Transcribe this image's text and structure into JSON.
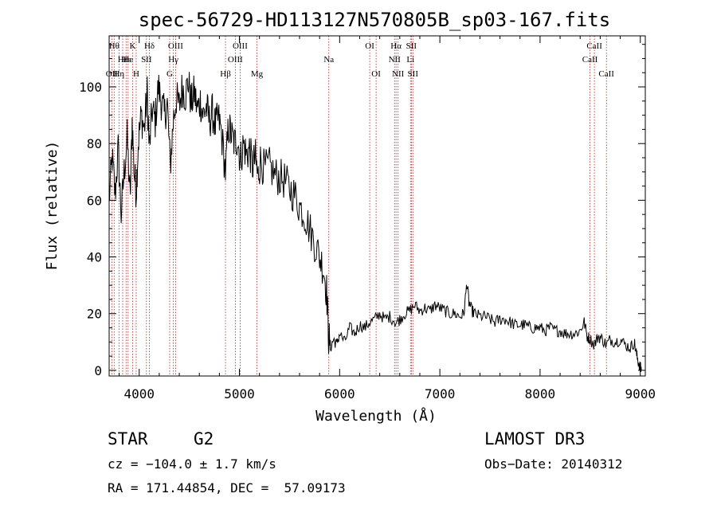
{
  "chart_data": {
    "type": "line",
    "title": "spec-56729-HD113127N570805B_sp03-167.fits",
    "xlabel": "Wavelength (Å)",
    "ylabel": "Flux (relative)",
    "xlim": [
      3700,
      9050
    ],
    "ylim": [
      -2,
      118
    ],
    "xticks": [
      4000,
      5000,
      6000,
      7000,
      8000,
      9000
    ],
    "yticks": [
      0,
      20,
      40,
      60,
      80,
      100
    ],
    "line_color": "#000000",
    "marker_color": "#b22222",
    "spectrum": [
      [
        3700,
        60
      ],
      [
        3730,
        75
      ],
      [
        3760,
        62
      ],
      [
        3790,
        78
      ],
      [
        3820,
        55
      ],
      [
        3850,
        70
      ],
      [
        3880,
        82
      ],
      [
        3910,
        60
      ],
      [
        3930,
        88
      ],
      [
        3950,
        70
      ],
      [
        3970,
        63
      ],
      [
        3990,
        80
      ],
      [
        4020,
        90
      ],
      [
        4050,
        85
      ],
      [
        4080,
        98
      ],
      [
        4100,
        78
      ],
      [
        4130,
        92
      ],
      [
        4160,
        88
      ],
      [
        4190,
        100
      ],
      [
        4220,
        95
      ],
      [
        4250,
        90
      ],
      [
        4280,
        94
      ],
      [
        4310,
        72
      ],
      [
        4340,
        88
      ],
      [
        4370,
        96
      ],
      [
        4400,
        93
      ],
      [
        4430,
        100
      ],
      [
        4460,
        97
      ],
      [
        4490,
        102
      ],
      [
        4520,
        94
      ],
      [
        4550,
        98
      ],
      [
        4580,
        92
      ],
      [
        4610,
        95
      ],
      [
        4640,
        90
      ],
      [
        4670,
        93
      ],
      [
        4700,
        88
      ],
      [
        4730,
        91
      ],
      [
        4760,
        86
      ],
      [
        4790,
        89
      ],
      [
        4820,
        84
      ],
      [
        4861,
        70
      ],
      [
        4890,
        86
      ],
      [
        4920,
        83
      ],
      [
        4950,
        80
      ],
      [
        4980,
        82
      ],
      [
        5010,
        74
      ],
      [
        5040,
        80
      ],
      [
        5070,
        76
      ],
      [
        5100,
        78
      ],
      [
        5130,
        72
      ],
      [
        5160,
        75
      ],
      [
        5183,
        68
      ],
      [
        5210,
        74
      ],
      [
        5250,
        71
      ],
      [
        5300,
        72
      ],
      [
        5350,
        69
      ],
      [
        5400,
        68
      ],
      [
        5450,
        67
      ],
      [
        5500,
        64
      ],
      [
        5550,
        62
      ],
      [
        5600,
        58
      ],
      [
        5650,
        55
      ],
      [
        5700,
        50
      ],
      [
        5750,
        45
      ],
      [
        5800,
        40
      ],
      [
        5840,
        36
      ],
      [
        5870,
        28
      ],
      [
        5890,
        12
      ],
      [
        5910,
        8
      ],
      [
        5940,
        11
      ],
      [
        5970,
        9
      ],
      [
        6000,
        13
      ],
      [
        6050,
        10
      ],
      [
        6100,
        15
      ],
      [
        6150,
        13
      ],
      [
        6200,
        16
      ],
      [
        6250,
        15
      ],
      [
        6300,
        17
      ],
      [
        6350,
        18
      ],
      [
        6400,
        20
      ],
      [
        6450,
        18
      ],
      [
        6500,
        19
      ],
      [
        6563,
        17
      ],
      [
        6600,
        18
      ],
      [
        6650,
        20
      ],
      [
        6700,
        21
      ],
      [
        6750,
        23
      ],
      [
        6800,
        21
      ],
      [
        6850,
        22
      ],
      [
        6900,
        21
      ],
      [
        6950,
        23
      ],
      [
        7000,
        22
      ],
      [
        7050,
        21
      ],
      [
        7100,
        20
      ],
      [
        7150,
        20
      ],
      [
        7200,
        19
      ],
      [
        7240,
        20
      ],
      [
        7270,
        31
      ],
      [
        7290,
        24
      ],
      [
        7320,
        21
      ],
      [
        7350,
        20
      ],
      [
        7400,
        19
      ],
      [
        7450,
        19
      ],
      [
        7500,
        18
      ],
      [
        7550,
        17
      ],
      [
        7600,
        18
      ],
      [
        7650,
        18
      ],
      [
        7700,
        17
      ],
      [
        7750,
        16
      ],
      [
        7800,
        16
      ],
      [
        7850,
        16
      ],
      [
        7900,
        15
      ],
      [
        7950,
        15
      ],
      [
        8000,
        15
      ],
      [
        8050,
        14
      ],
      [
        8100,
        15
      ],
      [
        8150,
        14
      ],
      [
        8200,
        14
      ],
      [
        8250,
        13
      ],
      [
        8300,
        13
      ],
      [
        8350,
        13
      ],
      [
        8400,
        14
      ],
      [
        8440,
        17
      ],
      [
        8470,
        12
      ],
      [
        8500,
        11
      ],
      [
        8542,
        9
      ],
      [
        8580,
        12
      ],
      [
        8620,
        11
      ],
      [
        8662,
        9
      ],
      [
        8700,
        11
      ],
      [
        8750,
        10
      ],
      [
        8800,
        11
      ],
      [
        8850,
        9
      ],
      [
        8900,
        8
      ],
      [
        8940,
        10
      ],
      [
        8960,
        6
      ],
      [
        8980,
        3
      ],
      [
        9000,
        1
      ],
      [
        9010,
        0
      ]
    ],
    "lines": [
      {
        "wl": 3727,
        "label": "OII",
        "row": 3
      },
      {
        "wl": 3750,
        "label": "Hθ",
        "row": 1
      },
      {
        "wl": 3798,
        "label": "Hη",
        "row": 3
      },
      {
        "wl": 3835,
        "label": "Hε",
        "row": 2
      },
      {
        "wl": 3869,
        "label": "Hε",
        "row": 2
      },
      {
        "wl": 3889,
        "label": "He",
        "row": 2
      },
      {
        "wl": 3934,
        "label": "K",
        "row": 1
      },
      {
        "wl": 3970,
        "label": "H",
        "row": 3
      },
      {
        "wl": 4072,
        "label": "SII",
        "row": 2
      },
      {
        "wl": 4102,
        "label": "Hδ",
        "row": 1
      },
      {
        "wl": 4304,
        "label": "G",
        "row": 3
      },
      {
        "wl": 4341,
        "label": "Hγ",
        "row": 2
      },
      {
        "wl": 4363,
        "label": "OIII",
        "row": 1
      },
      {
        "wl": 4861,
        "label": "Hβ",
        "row": 3
      },
      {
        "wl": 4959,
        "label": "OIII",
        "row": 2
      },
      {
        "wl": 5007,
        "label": "OIII",
        "row": 1
      },
      {
        "wl": 5175,
        "label": "Mg",
        "row": 3
      },
      {
        "wl": 5892,
        "label": "Na",
        "row": 2
      },
      {
        "wl": 6300,
        "label": "OI",
        "row": 1
      },
      {
        "wl": 6364,
        "label": "OI",
        "row": 3
      },
      {
        "wl": 6548,
        "label": "NII",
        "row": 2
      },
      {
        "wl": 6563,
        "label": "Hα",
        "row": 1
      },
      {
        "wl": 6583,
        "label": "NII",
        "row": 3
      },
      {
        "wl": 6707,
        "label": "Li",
        "row": 2
      },
      {
        "wl": 6716,
        "label": "SII",
        "row": 1
      },
      {
        "wl": 6731,
        "label": "SII",
        "row": 3
      },
      {
        "wl": 8498,
        "label": "CaII",
        "row": 2
      },
      {
        "wl": 8542,
        "label": "CaII",
        "row": 1
      },
      {
        "wl": 8662,
        "label": "CaII",
        "row": 3
      }
    ]
  },
  "info": {
    "object_class": "STAR",
    "subclass": "G2",
    "redshift": "cz = −104.0 ± 1.7 km/s",
    "coords": "RA = 171.44854, DEC =  57.09173",
    "survey": "LAMOST DR3",
    "obs_date": "Obs−Date: 20140312"
  }
}
